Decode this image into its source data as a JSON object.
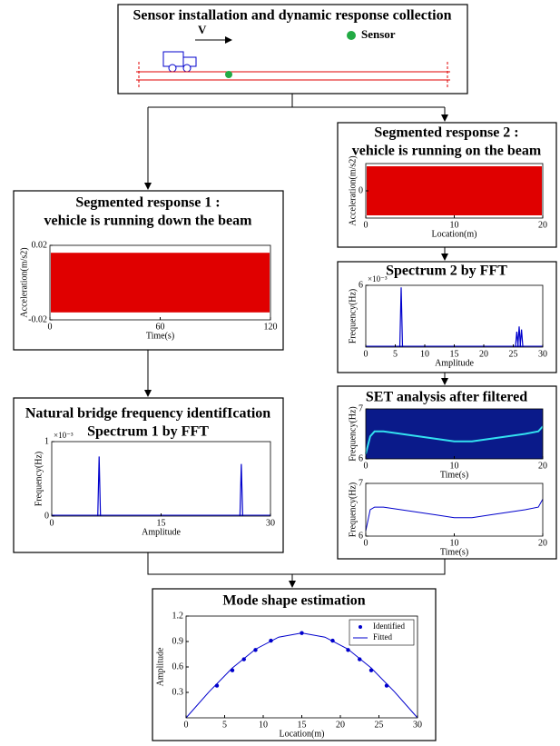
{
  "top": {
    "title": "Sensor installation and dynamic response collection",
    "velocity_label": "V",
    "sensor_label": "Sensor"
  },
  "response2": {
    "title": [
      "Segmented response 2 :",
      "vehicle is running on the beam"
    ],
    "plot": {
      "xlim": [
        0,
        20
      ],
      "xticks": [
        0,
        10,
        20
      ],
      "ylim": [
        -1,
        1
      ],
      "yticks": [
        0
      ],
      "xlabel": "Location(m)",
      "ylabel": "Acceleration(m/s2)",
      "noise": {
        "lower": -0.9,
        "upper": 0.9,
        "color": "#e00000"
      }
    }
  },
  "response1": {
    "title": [
      "Segmented response 1 :",
      "vehicle is running down the beam"
    ],
    "plot": {
      "xlim": [
        0,
        120
      ],
      "xticks": [
        0,
        60,
        120
      ],
      "ylim": [
        -0.02,
        0.02
      ],
      "yticks": [
        -0.02,
        0.02
      ],
      "xlabel": "Time(s)",
      "ylabel": "Acceleration(m/s2)",
      "noise": {
        "lower": -0.016,
        "upper": 0.016,
        "color": "#e00000"
      }
    }
  },
  "spectrum2": {
    "title": [
      "Spectrum 2 by FFT"
    ],
    "plot": {
      "xlim": [
        0,
        30
      ],
      "xticks": [
        0,
        5,
        10,
        15,
        20,
        25,
        30
      ],
      "ylim": [
        0,
        6
      ],
      "yticks": [
        6
      ],
      "exponent": "×10⁻³",
      "xlabel": "Amplitude",
      "ylabel": "Frequency(Hz)",
      "peaks": {
        "x": [
          6,
          25.6,
          26,
          26.4
        ],
        "values": [
          5.8,
          1.5,
          2.0,
          1.7
        ],
        "color": "#0000cc"
      }
    }
  },
  "spectrum1": {
    "title": [
      "Natural bridge frequency identifIcation",
      "Spectrum 1 by FFT"
    ],
    "plot": {
      "xlim": [
        0,
        30
      ],
      "xticks": [
        0,
        15,
        30
      ],
      "ylim": [
        0,
        1
      ],
      "yticks": [
        0,
        1
      ],
      "exponent": "×10⁻³",
      "xlabel": "Amplitude",
      "ylabel": "Frequency(Hz)",
      "peaks": {
        "x": [
          6.5,
          26
        ],
        "values": [
          0.8,
          0.7
        ],
        "color": "#0000cc"
      }
    }
  },
  "set": {
    "title": [
      "SET analysis after filtered"
    ],
    "plot1": {
      "xlim": [
        0,
        20
      ],
      "xticks": [
        0,
        10,
        20
      ],
      "ylim": [
        6,
        7
      ],
      "yticks": [
        6,
        7
      ],
      "xlabel": "Time(s)",
      "ylabel": "Frequency(Hz)",
      "background": "#0a1a8a",
      "line": {
        "x": [
          0,
          0.5,
          1,
          2,
          4,
          6,
          8,
          10,
          12,
          14,
          16,
          18,
          19.5,
          20
        ],
        "y": [
          6.1,
          6.45,
          6.55,
          6.55,
          6.5,
          6.45,
          6.4,
          6.35,
          6.35,
          6.4,
          6.45,
          6.5,
          6.55,
          6.65
        ],
        "color": "#33e0f0"
      }
    },
    "plot2": {
      "xlim": [
        0,
        20
      ],
      "xticks": [
        0,
        10,
        20
      ],
      "ylim": [
        6,
        7
      ],
      "yticks": [
        6,
        7
      ],
      "xlabel": "Time(s)",
      "ylabel": "Frequency(Hz)",
      "line": {
        "x": [
          0,
          0.5,
          1,
          2,
          4,
          6,
          8,
          10,
          12,
          14,
          16,
          18,
          19.5,
          20
        ],
        "y": [
          6.1,
          6.5,
          6.55,
          6.55,
          6.5,
          6.45,
          6.4,
          6.35,
          6.35,
          6.4,
          6.45,
          6.5,
          6.55,
          6.7
        ],
        "color": "#0000cc"
      }
    }
  },
  "mode": {
    "title": [
      "Mode shape estimation"
    ],
    "plot": {
      "xlim": [
        0,
        30
      ],
      "xticks": [
        0,
        5,
        10,
        15,
        20,
        25,
        30
      ],
      "ylim": [
        0,
        1.2
      ],
      "yticks": [
        0.3,
        0.6,
        0.9,
        1.2
      ],
      "xlabel": "Location(m)",
      "ylabel": "Amplitude",
      "scatter": {
        "name": "Identified",
        "x": [
          4,
          6,
          7.5,
          9,
          11,
          15,
          19,
          21,
          22.5,
          24,
          26
        ],
        "y": [
          0.38,
          0.56,
          0.69,
          0.8,
          0.91,
          1.0,
          0.91,
          0.8,
          0.69,
          0.56,
          0.38
        ],
        "color": "#0000cc"
      },
      "line": {
        "name": "Fitted",
        "x": [
          0,
          3,
          6,
          9,
          12,
          15,
          18,
          21,
          24,
          27,
          30
        ],
        "y": [
          0,
          0.309,
          0.588,
          0.809,
          0.951,
          1.0,
          0.951,
          0.809,
          0.588,
          0.309,
          0
        ],
        "color": "#0000cc"
      }
    }
  }
}
